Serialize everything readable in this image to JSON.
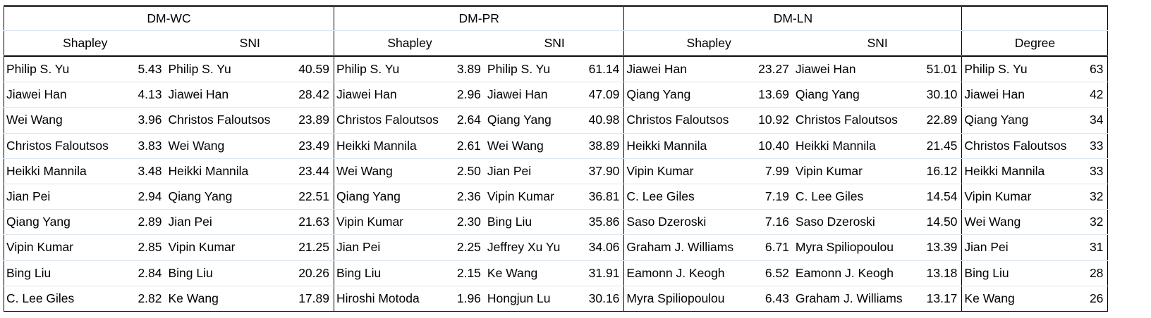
{
  "groups": [
    {
      "title": "DM-WC",
      "sub": [
        "Shapley",
        "SNI"
      ],
      "rows": [
        [
          "Philip S. Yu",
          "5.43",
          "Philip S. Yu",
          "40.59"
        ],
        [
          "Jiawei Han",
          "4.13",
          "Jiawei Han",
          "28.42"
        ],
        [
          "Wei Wang",
          "3.96",
          "Christos Faloutsos",
          "23.89"
        ],
        [
          "Christos Faloutsos",
          "3.83",
          "Wei Wang",
          "23.49"
        ],
        [
          "Heikki Mannila",
          "3.48",
          "Heikki Mannila",
          "23.44"
        ],
        [
          "Jian Pei",
          "2.94",
          "Qiang Yang",
          "22.51"
        ],
        [
          "Qiang Yang",
          "2.89",
          "Jian Pei",
          "21.63"
        ],
        [
          "Vipin Kumar",
          "2.85",
          "Vipin Kumar",
          "21.25"
        ],
        [
          "Bing Liu",
          "2.84",
          "Bing Liu",
          "20.26"
        ],
        [
          "C. Lee Giles",
          "2.82",
          "Ke Wang",
          "17.89"
        ]
      ]
    },
    {
      "title": "DM-PR",
      "sub": [
        "Shapley",
        "SNI"
      ],
      "rows": [
        [
          "Philip S. Yu",
          "3.89",
          "Philip S. Yu",
          "61.14"
        ],
        [
          "Jiawei Han",
          "2.96",
          "Jiawei Han",
          "47.09"
        ],
        [
          "Christos Faloutsos",
          "2.64",
          "Qiang Yang",
          "40.98"
        ],
        [
          "Heikki Mannila",
          "2.61",
          "Wei Wang",
          "38.89"
        ],
        [
          "Wei Wang",
          "2.50",
          "Jian Pei",
          "37.90"
        ],
        [
          "Qiang Yang",
          "2.36",
          "Vipin Kumar",
          "36.81"
        ],
        [
          "Vipin Kumar",
          "2.30",
          "Bing Liu",
          "35.86"
        ],
        [
          "Jian Pei",
          "2.25",
          "Jeffrey Xu Yu",
          "34.06"
        ],
        [
          "Bing Liu",
          "2.15",
          "Ke Wang",
          "31.91"
        ],
        [
          "Hiroshi Motoda",
          "1.96",
          "Hongjun Lu",
          "30.16"
        ]
      ]
    },
    {
      "title": "DM-LN",
      "sub": [
        "Shapley",
        "SNI"
      ],
      "rows": [
        [
          "Jiawei Han",
          "23.27",
          "Jiawei Han",
          "51.01"
        ],
        [
          "Qiang Yang",
          "13.69",
          "Qiang Yang",
          "30.10"
        ],
        [
          "Christos Faloutsos",
          "10.92",
          "Christos Faloutsos",
          "22.89"
        ],
        [
          "Heikki Mannila",
          "10.40",
          "Heikki Mannila",
          "21.45"
        ],
        [
          "Vipin Kumar",
          "7.99",
          "Vipin Kumar",
          "16.12"
        ],
        [
          "C. Lee Giles",
          "7.19",
          "C. Lee Giles",
          "14.54"
        ],
        [
          "Saso Dzeroski",
          "7.16",
          "Saso Dzeroski",
          "14.50"
        ],
        [
          "Graham J. Williams",
          "6.71",
          "Myra Spiliopoulou",
          "13.39"
        ],
        [
          "Eamonn J. Keogh",
          "6.52",
          "Eamonn J. Keogh",
          "13.18"
        ],
        [
          "Myra Spiliopoulou",
          "6.43",
          "Graham J. Williams",
          "13.17"
        ]
      ]
    }
  ],
  "degree": {
    "title": "",
    "sub": "Degree",
    "rows": [
      [
        "Philip S. Yu",
        "63"
      ],
      [
        "Jiawei Han",
        "42"
      ],
      [
        "Qiang Yang",
        "34"
      ],
      [
        "Christos Faloutsos",
        "33"
      ],
      [
        "Heikki Mannila",
        "33"
      ],
      [
        "Vipin Kumar",
        "32"
      ],
      [
        "Wei Wang",
        "32"
      ],
      [
        "Jian Pei",
        "31"
      ],
      [
        "Bing Liu",
        "28"
      ],
      [
        "Ke Wang",
        "26"
      ]
    ]
  }
}
